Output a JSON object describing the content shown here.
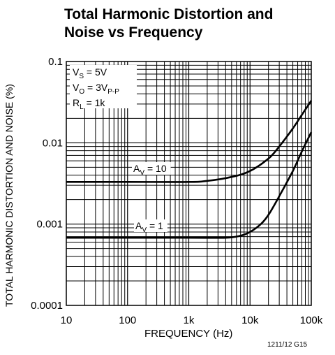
{
  "chart_data": {
    "type": "line",
    "title_line1": "Total Harmonic Distortion and",
    "title_line2": "Noise vs Frequency",
    "xlabel": "FREQUENCY (Hz)",
    "ylabel": "TOTAL HARMONIC DISTORTION AND NOISE (%)",
    "x_scale": "log",
    "y_scale": "log",
    "xlim": [
      10,
      100000
    ],
    "ylim": [
      0.0001,
      0.1
    ],
    "grid": true,
    "x_ticks": [
      {
        "value": 10,
        "label": "10"
      },
      {
        "value": 100,
        "label": "100"
      },
      {
        "value": 1000,
        "label": "1k"
      },
      {
        "value": 10000,
        "label": "10k"
      },
      {
        "value": 100000,
        "label": "100k"
      }
    ],
    "y_ticks": [
      {
        "value": 0.1,
        "label": "0.1"
      },
      {
        "value": 0.01,
        "label": "0.01"
      },
      {
        "value": 0.001,
        "label": "0.001"
      },
      {
        "value": 0.0001,
        "label": "0.0001"
      }
    ],
    "conditions": [
      {
        "main": "V",
        "sub": "S",
        "rest": " = 5V"
      },
      {
        "main": "V",
        "sub": "O",
        "rest": " = 3V",
        "sub2": "P-P"
      },
      {
        "main": "R",
        "sub": "L",
        "rest": " = 1k"
      }
    ],
    "series": [
      {
        "label_main": "A",
        "label_sub": "V",
        "label_rest": " = 10",
        "points": [
          [
            10,
            0.0033
          ],
          [
            100,
            0.0033
          ],
          [
            1000,
            0.0033
          ],
          [
            2000,
            0.0034
          ],
          [
            5000,
            0.0038
          ],
          [
            10000,
            0.0045
          ],
          [
            20000,
            0.0064
          ],
          [
            30000,
            0.009
          ],
          [
            50000,
            0.015
          ],
          [
            70000,
            0.022
          ],
          [
            100000,
            0.033
          ]
        ]
      },
      {
        "label_main": "A",
        "label_sub": "V",
        "label_rest": " = 1",
        "points": [
          [
            10,
            0.00068
          ],
          [
            100,
            0.00068
          ],
          [
            1000,
            0.00068
          ],
          [
            4000,
            0.00068
          ],
          [
            7000,
            0.00072
          ],
          [
            10000,
            0.0008
          ],
          [
            15000,
            0.001
          ],
          [
            20000,
            0.0013
          ],
          [
            30000,
            0.0022
          ],
          [
            50000,
            0.0045
          ],
          [
            70000,
            0.0078
          ],
          [
            100000,
            0.0135
          ]
        ]
      }
    ],
    "ref_code": "1211/12 G15"
  }
}
